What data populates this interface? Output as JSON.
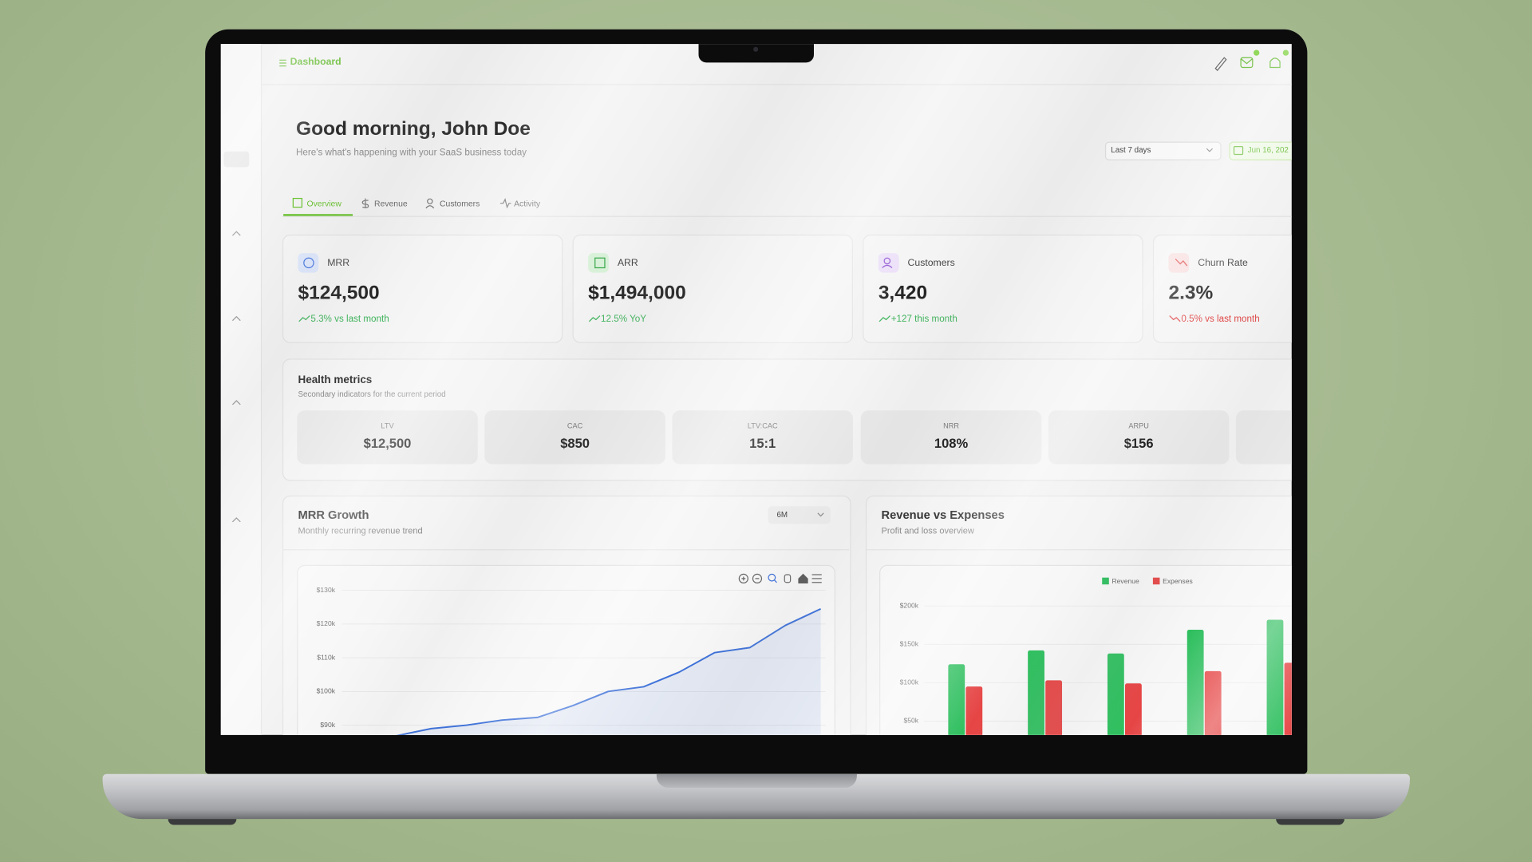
{
  "topbar": {
    "title": "Dashboard"
  },
  "greeting": {
    "title": "Good morning, John Doe",
    "subtitle": "Here's what's happening with your SaaS business today",
    "period": "Last 7 days",
    "date": "Jun 16, 202"
  },
  "tabs": [
    "Overview",
    "Revenue",
    "Customers",
    "Activity"
  ],
  "kpis": [
    {
      "label": "MRR",
      "value": "$124,500",
      "change": "5.3% vs last month"
    },
    {
      "label": "ARR",
      "value": "$1,494,000",
      "change": "12.5% YoY"
    },
    {
      "label": "Customers",
      "value": "3,420",
      "change": "+127 this month"
    },
    {
      "label": "Churn Rate",
      "value": "2.3%",
      "change": "0.5% vs last month"
    }
  ],
  "health": {
    "title": "Health metrics",
    "subtitle": "Secondary indicators for the current period",
    "metrics": [
      {
        "label": "LTV",
        "value": "$12,500"
      },
      {
        "label": "CAC",
        "value": "$850"
      },
      {
        "label": "LTV:CAC",
        "value": "15:1"
      },
      {
        "label": "NRR",
        "value": "108%"
      },
      {
        "label": "ARPU",
        "value": "$156"
      }
    ]
  },
  "chart_data": [
    {
      "type": "line",
      "title": "MRR Growth",
      "subtitle": "Monthly recurring revenue trend",
      "range": "6M",
      "categories": [
        null,
        null,
        null,
        null,
        null,
        null,
        null,
        null,
        null,
        null,
        null,
        null,
        null
      ],
      "values": [
        86800,
        89000,
        90000,
        91500,
        92300,
        95800,
        100000,
        101400,
        105700,
        111500,
        113000,
        119600,
        124500
      ],
      "color": "#3b6fd8",
      "ylim": [
        80000,
        130000
      ],
      "yticks": [
        {
          "value": 90000,
          "label": "$90k"
        },
        {
          "value": 100000,
          "label": "$100k"
        },
        {
          "value": 110000,
          "label": "$110k"
        },
        {
          "value": 120000,
          "label": "$120k"
        },
        {
          "value": 130000,
          "label": "$130k"
        }
      ],
      "grid": true
    },
    {
      "type": "bar",
      "title": "Revenue vs Expenses",
      "subtitle": "Profit and loss overview",
      "categories": [
        null,
        null,
        null,
        null,
        null
      ],
      "series": [
        {
          "name": "Revenue",
          "color": "#2fbf5f",
          "values": [
            124000,
            142000,
            138000,
            169000,
            182000
          ]
        },
        {
          "name": "Expenses",
          "color": "#e64545",
          "values": [
            95000,
            103000,
            99000,
            115000,
            126000
          ]
        }
      ],
      "ylim": [
        0,
        200000
      ],
      "yticks": [
        {
          "value": 50000,
          "label": "$50k"
        },
        {
          "value": 100000,
          "label": "$100k"
        },
        {
          "value": 150000,
          "label": "$150k"
        },
        {
          "value": 200000,
          "label": "$200k"
        }
      ],
      "legend": "top",
      "grid": true
    }
  ]
}
